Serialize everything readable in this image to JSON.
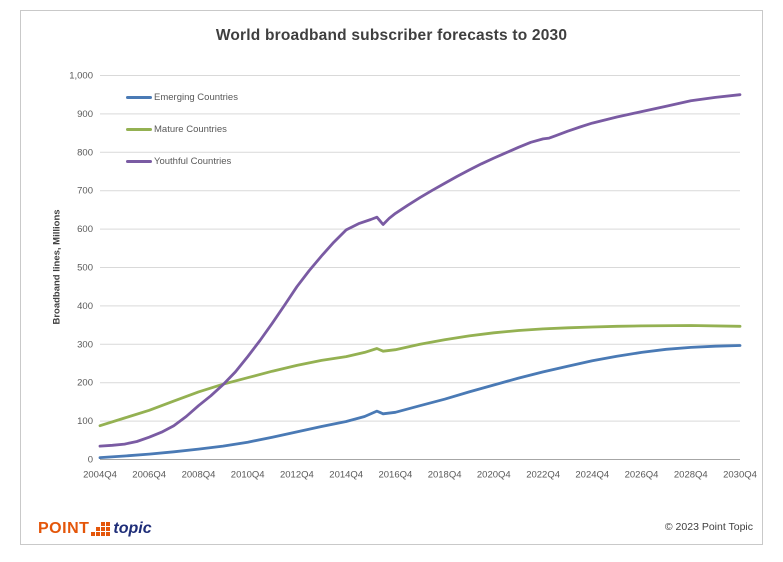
{
  "page": {
    "title": "World broadband subscriber forecasts to 2030",
    "footer": {
      "logo_point": "POINT",
      "logo_topic": "topic",
      "logo_orange": "#e4560a",
      "logo_navy": "#1e2d78",
      "copyright": "© 2023 Point Topic"
    }
  },
  "chart_data": {
    "type": "line",
    "title": "World broadband subscriber forecasts to 2030",
    "xlabel": "",
    "ylabel": "Broadband lines, Millions",
    "ylim": [
      0,
      1000
    ],
    "ytick_interval": 100,
    "ytick_labels": [
      "0",
      "100",
      "200",
      "300",
      "400",
      "500",
      "600",
      "700",
      "800",
      "900",
      "1,000"
    ],
    "xtick_labels": [
      "2004Q4",
      "2006Q4",
      "2008Q4",
      "2010Q4",
      "2012Q4",
      "2014Q4",
      "2016Q4",
      "2018Q4",
      "2020Q4",
      "2022Q4",
      "2024Q4",
      "2026Q4",
      "2028Q4",
      "2030Q4"
    ],
    "x_unit": "quarters_since_2004Q4",
    "x_range_quarters": [
      0,
      104
    ],
    "grid": true,
    "legend_position": "inside-top-left",
    "axis_color": "#a6a6a6",
    "gridline_color": "#d9d9d9",
    "series": [
      {
        "name": "Emerging Countries",
        "color": "#4a7ab5",
        "points": [
          [
            0,
            5
          ],
          [
            4,
            9
          ],
          [
            8,
            14
          ],
          [
            12,
            20
          ],
          [
            16,
            27
          ],
          [
            20,
            35
          ],
          [
            24,
            45
          ],
          [
            28,
            58
          ],
          [
            32,
            72
          ],
          [
            36,
            86
          ],
          [
            40,
            99
          ],
          [
            43,
            112
          ],
          [
            45,
            126
          ],
          [
            46,
            119
          ],
          [
            48,
            123
          ],
          [
            52,
            140
          ],
          [
            56,
            157
          ],
          [
            60,
            176
          ],
          [
            64,
            194
          ],
          [
            68,
            212
          ],
          [
            72,
            228
          ],
          [
            76,
            243
          ],
          [
            80,
            257
          ],
          [
            84,
            269
          ],
          [
            88,
            279
          ],
          [
            92,
            287
          ],
          [
            96,
            292
          ],
          [
            100,
            295
          ],
          [
            104,
            297
          ]
        ]
      },
      {
        "name": "Mature Countries",
        "color": "#94b152",
        "points": [
          [
            0,
            88
          ],
          [
            4,
            108
          ],
          [
            8,
            128
          ],
          [
            12,
            152
          ],
          [
            16,
            176
          ],
          [
            20,
            196
          ],
          [
            24,
            213
          ],
          [
            28,
            230
          ],
          [
            32,
            245
          ],
          [
            36,
            258
          ],
          [
            40,
            268
          ],
          [
            43,
            279
          ],
          [
            45,
            289
          ],
          [
            46,
            282
          ],
          [
            48,
            286
          ],
          [
            52,
            300
          ],
          [
            56,
            312
          ],
          [
            60,
            322
          ],
          [
            64,
            330
          ],
          [
            68,
            336
          ],
          [
            72,
            340
          ],
          [
            76,
            343
          ],
          [
            80,
            345
          ],
          [
            84,
            347
          ],
          [
            88,
            348
          ],
          [
            96,
            349
          ],
          [
            104,
            347
          ]
        ]
      },
      {
        "name": "Youthful Countries",
        "color": "#7a5ba3",
        "points": [
          [
            0,
            35
          ],
          [
            2,
            37
          ],
          [
            4,
            40
          ],
          [
            6,
            47
          ],
          [
            8,
            58
          ],
          [
            10,
            71
          ],
          [
            12,
            88
          ],
          [
            14,
            112
          ],
          [
            16,
            140
          ],
          [
            18,
            166
          ],
          [
            20,
            195
          ],
          [
            22,
            228
          ],
          [
            24,
            268
          ],
          [
            26,
            310
          ],
          [
            28,
            355
          ],
          [
            30,
            402
          ],
          [
            32,
            450
          ],
          [
            34,
            492
          ],
          [
            36,
            530
          ],
          [
            38,
            566
          ],
          [
            40,
            598
          ],
          [
            42,
            614
          ],
          [
            44,
            625
          ],
          [
            45,
            631
          ],
          [
            46,
            612
          ],
          [
            47,
            628
          ],
          [
            48,
            641
          ],
          [
            50,
            662
          ],
          [
            52,
            682
          ],
          [
            54,
            701
          ],
          [
            56,
            719
          ],
          [
            58,
            737
          ],
          [
            60,
            754
          ],
          [
            62,
            770
          ],
          [
            64,
            785
          ],
          [
            66,
            799
          ],
          [
            68,
            813
          ],
          [
            70,
            826
          ],
          [
            72,
            835
          ],
          [
            73,
            837
          ],
          [
            74,
            843
          ],
          [
            76,
            855
          ],
          [
            78,
            866
          ],
          [
            80,
            876
          ],
          [
            84,
            892
          ],
          [
            88,
            906
          ],
          [
            92,
            920
          ],
          [
            96,
            934
          ],
          [
            100,
            943
          ],
          [
            104,
            950
          ]
        ]
      }
    ]
  }
}
